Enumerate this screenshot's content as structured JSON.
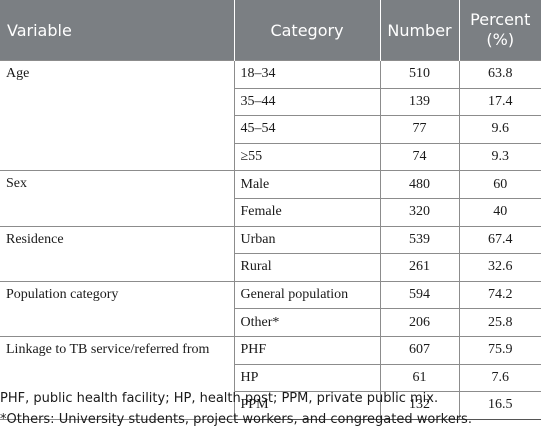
{
  "header": {
    "variable": "Variable",
    "category": "Category",
    "number": "Number",
    "percent_line1": "Percent",
    "percent_line2": "(%)"
  },
  "groups": [
    {
      "variable": "Age",
      "rows": [
        {
          "category": "18–34",
          "number": "510",
          "percent": "63.8"
        },
        {
          "category": "35–44",
          "number": "139",
          "percent": "17.4"
        },
        {
          "category": "45–54",
          "number": "77",
          "percent": "9.6"
        },
        {
          "category": "≥55",
          "number": "74",
          "percent": "9.3"
        }
      ]
    },
    {
      "variable": "Sex",
      "rows": [
        {
          "category": "Male",
          "number": "480",
          "percent": "60"
        },
        {
          "category": "Female",
          "number": "320",
          "percent": "40"
        }
      ]
    },
    {
      "variable": "Residence",
      "rows": [
        {
          "category": "Urban",
          "number": "539",
          "percent": "67.4"
        },
        {
          "category": "Rural",
          "number": "261",
          "percent": "32.6"
        }
      ]
    },
    {
      "variable": "Population category",
      "rows": [
        {
          "category": "General population",
          "number": "594",
          "percent": "74.2"
        },
        {
          "category": "Other*",
          "number": "206",
          "percent": "25.8"
        }
      ]
    },
    {
      "variable": "Linkage to TB service/referred from",
      "rows": [
        {
          "category": "PHF",
          "number": "607",
          "percent": "75.9"
        },
        {
          "category": "HP",
          "number": "61",
          "percent": "7.6"
        },
        {
          "category": "PPM",
          "number": "132",
          "percent": "16.5"
        }
      ]
    }
  ],
  "footnotes": {
    "abbreviations": "PHF, public health facility; HP, health post; PPM, private public mix.",
    "others": "*Others: University students, project workers, and congregated workers."
  },
  "colors": {
    "header_bg": "#7b7f83",
    "header_text": "#ffffff",
    "border": "#8c8c8c"
  }
}
